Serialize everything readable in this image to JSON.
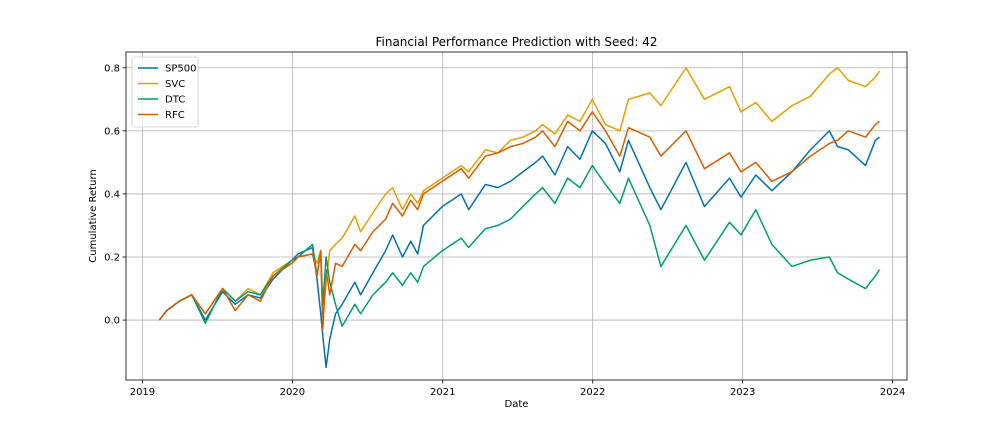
{
  "chart_data": {
    "type": "line",
    "title": "Financial Performance Prediction with Seed: 42",
    "xlabel": "Date",
    "ylabel": "Cumulative Return",
    "x_ticks": [
      "2019",
      "2020",
      "2021",
      "2022",
      "2023",
      "2024"
    ],
    "y_ticks": [
      "0.0",
      "0.2",
      "0.4",
      "0.6",
      "0.8"
    ],
    "xlim": [
      "2018-11-22",
      "2024-02-05"
    ],
    "ylim": [
      -0.19,
      0.85
    ],
    "grid": true,
    "legend_position": "upper left",
    "series": [
      {
        "name": "SP500",
        "color": "#0072B2",
        "points": [
          [
            "2019-02-11",
            0.0
          ],
          [
            "2019-03-01",
            0.03
          ],
          [
            "2019-04-01",
            0.06
          ],
          [
            "2019-05-01",
            0.08
          ],
          [
            "2019-06-03",
            0.0
          ],
          [
            "2019-07-15",
            0.09
          ],
          [
            "2019-08-15",
            0.05
          ],
          [
            "2019-09-15",
            0.08
          ],
          [
            "2019-10-15",
            0.07
          ],
          [
            "2019-11-15",
            0.13
          ],
          [
            "2019-12-31",
            0.19
          ],
          [
            "2020-01-15",
            0.21
          ],
          [
            "2020-02-19",
            0.23
          ],
          [
            "2020-03-01",
            0.13
          ],
          [
            "2020-03-10",
            0.02
          ],
          [
            "2020-03-15",
            -0.05
          ],
          [
            "2020-03-23",
            -0.15
          ],
          [
            "2020-04-01",
            -0.06
          ],
          [
            "2020-04-15",
            0.02
          ],
          [
            "2020-05-01",
            0.05
          ],
          [
            "2020-06-01",
            0.12
          ],
          [
            "2020-06-15",
            0.08
          ],
          [
            "2020-07-15",
            0.15
          ],
          [
            "2020-08-15",
            0.22
          ],
          [
            "2020-09-01",
            0.27
          ],
          [
            "2020-09-25",
            0.2
          ],
          [
            "2020-10-15",
            0.25
          ],
          [
            "2020-11-01",
            0.21
          ],
          [
            "2020-11-15",
            0.3
          ],
          [
            "2020-12-31",
            0.36
          ],
          [
            "2021-02-15",
            0.4
          ],
          [
            "2021-03-05",
            0.35
          ],
          [
            "2021-04-15",
            0.43
          ],
          [
            "2021-05-15",
            0.42
          ],
          [
            "2021-06-15",
            0.44
          ],
          [
            "2021-07-15",
            0.47
          ],
          [
            "2021-08-15",
            0.5
          ],
          [
            "2021-09-01",
            0.52
          ],
          [
            "2021-10-01",
            0.46
          ],
          [
            "2021-11-01",
            0.55
          ],
          [
            "2021-12-01",
            0.51
          ],
          [
            "2021-12-31",
            0.6
          ],
          [
            "2022-02-01",
            0.56
          ],
          [
            "2022-03-08",
            0.47
          ],
          [
            "2022-03-29",
            0.57
          ],
          [
            "2022-05-20",
            0.42
          ],
          [
            "2022-06-16",
            0.35
          ],
          [
            "2022-08-16",
            0.5
          ],
          [
            "2022-09-30",
            0.36
          ],
          [
            "2022-11-30",
            0.45
          ],
          [
            "2022-12-28",
            0.39
          ],
          [
            "2023-02-02",
            0.46
          ],
          [
            "2023-03-13",
            0.41
          ],
          [
            "2023-05-01",
            0.47
          ],
          [
            "2023-06-15",
            0.54
          ],
          [
            "2023-07-31",
            0.6
          ],
          [
            "2023-08-20",
            0.55
          ],
          [
            "2023-09-15",
            0.54
          ],
          [
            "2023-10-27",
            0.49
          ],
          [
            "2023-11-20",
            0.57
          ],
          [
            "2023-11-30",
            0.58
          ]
        ]
      },
      {
        "name": "SVC",
        "color": "#E69F00",
        "points": [
          [
            "2019-02-11",
            0.0
          ],
          [
            "2019-03-01",
            0.03
          ],
          [
            "2019-04-01",
            0.06
          ],
          [
            "2019-05-01",
            0.08
          ],
          [
            "2019-06-03",
            0.02
          ],
          [
            "2019-07-15",
            0.1
          ],
          [
            "2019-08-15",
            0.06
          ],
          [
            "2019-09-15",
            0.1
          ],
          [
            "2019-10-15",
            0.08
          ],
          [
            "2019-11-15",
            0.15
          ],
          [
            "2019-12-31",
            0.19
          ],
          [
            "2020-01-15",
            0.2
          ],
          [
            "2020-02-19",
            0.21
          ],
          [
            "2020-03-01",
            0.18
          ],
          [
            "2020-03-10",
            0.22
          ],
          [
            "2020-03-15",
            0.0
          ],
          [
            "2020-03-23",
            0.12
          ],
          [
            "2020-04-01",
            0.22
          ],
          [
            "2020-04-15",
            0.24
          ],
          [
            "2020-05-01",
            0.26
          ],
          [
            "2020-06-01",
            0.33
          ],
          [
            "2020-06-15",
            0.28
          ],
          [
            "2020-07-15",
            0.34
          ],
          [
            "2020-08-15",
            0.4
          ],
          [
            "2020-09-01",
            0.42
          ],
          [
            "2020-09-25",
            0.35
          ],
          [
            "2020-10-15",
            0.4
          ],
          [
            "2020-11-01",
            0.37
          ],
          [
            "2020-11-15",
            0.41
          ],
          [
            "2020-12-31",
            0.45
          ],
          [
            "2021-02-15",
            0.49
          ],
          [
            "2021-03-05",
            0.47
          ],
          [
            "2021-04-15",
            0.54
          ],
          [
            "2021-05-15",
            0.53
          ],
          [
            "2021-06-15",
            0.57
          ],
          [
            "2021-07-15",
            0.58
          ],
          [
            "2021-08-15",
            0.6
          ],
          [
            "2021-09-01",
            0.62
          ],
          [
            "2021-10-01",
            0.59
          ],
          [
            "2021-11-01",
            0.65
          ],
          [
            "2021-12-01",
            0.63
          ],
          [
            "2021-12-31",
            0.7
          ],
          [
            "2022-02-01",
            0.62
          ],
          [
            "2022-03-08",
            0.6
          ],
          [
            "2022-03-29",
            0.7
          ],
          [
            "2022-05-20",
            0.72
          ],
          [
            "2022-06-16",
            0.68
          ],
          [
            "2022-08-16",
            0.8
          ],
          [
            "2022-09-30",
            0.7
          ],
          [
            "2022-11-30",
            0.74
          ],
          [
            "2022-12-28",
            0.66
          ],
          [
            "2023-02-02",
            0.69
          ],
          [
            "2023-03-13",
            0.63
          ],
          [
            "2023-05-01",
            0.68
          ],
          [
            "2023-06-15",
            0.71
          ],
          [
            "2023-07-31",
            0.78
          ],
          [
            "2023-08-20",
            0.8
          ],
          [
            "2023-09-15",
            0.76
          ],
          [
            "2023-10-27",
            0.74
          ],
          [
            "2023-11-20",
            0.77
          ],
          [
            "2023-11-30",
            0.79
          ]
        ]
      },
      {
        "name": "DTC",
        "color": "#009E73",
        "points": [
          [
            "2019-02-11",
            0.0
          ],
          [
            "2019-03-01",
            0.03
          ],
          [
            "2019-04-01",
            0.06
          ],
          [
            "2019-05-01",
            0.08
          ],
          [
            "2019-06-03",
            -0.01
          ],
          [
            "2019-07-15",
            0.1
          ],
          [
            "2019-08-15",
            0.06
          ],
          [
            "2019-09-15",
            0.09
          ],
          [
            "2019-10-15",
            0.08
          ],
          [
            "2019-11-15",
            0.14
          ],
          [
            "2019-12-31",
            0.19
          ],
          [
            "2020-01-15",
            0.2
          ],
          [
            "2020-02-19",
            0.24
          ],
          [
            "2020-03-01",
            0.14
          ],
          [
            "2020-03-10",
            0.22
          ],
          [
            "2020-03-15",
            0.05
          ],
          [
            "2020-03-23",
            0.2
          ],
          [
            "2020-04-01",
            0.12
          ],
          [
            "2020-04-15",
            0.05
          ],
          [
            "2020-05-01",
            -0.02
          ],
          [
            "2020-06-01",
            0.05
          ],
          [
            "2020-06-15",
            0.02
          ],
          [
            "2020-07-15",
            0.08
          ],
          [
            "2020-08-15",
            0.12
          ],
          [
            "2020-09-01",
            0.15
          ],
          [
            "2020-09-25",
            0.11
          ],
          [
            "2020-10-15",
            0.15
          ],
          [
            "2020-11-01",
            0.12
          ],
          [
            "2020-11-15",
            0.17
          ],
          [
            "2020-12-31",
            0.22
          ],
          [
            "2021-02-15",
            0.26
          ],
          [
            "2021-03-05",
            0.23
          ],
          [
            "2021-04-15",
            0.29
          ],
          [
            "2021-05-15",
            0.3
          ],
          [
            "2021-06-15",
            0.32
          ],
          [
            "2021-07-15",
            0.36
          ],
          [
            "2021-08-15",
            0.4
          ],
          [
            "2021-09-01",
            0.42
          ],
          [
            "2021-10-01",
            0.37
          ],
          [
            "2021-11-01",
            0.45
          ],
          [
            "2021-12-01",
            0.42
          ],
          [
            "2021-12-31",
            0.49
          ],
          [
            "2022-02-01",
            0.43
          ],
          [
            "2022-03-08",
            0.37
          ],
          [
            "2022-03-29",
            0.45
          ],
          [
            "2022-05-20",
            0.3
          ],
          [
            "2022-06-16",
            0.17
          ],
          [
            "2022-08-16",
            0.3
          ],
          [
            "2022-09-30",
            0.19
          ],
          [
            "2022-11-30",
            0.31
          ],
          [
            "2022-12-28",
            0.27
          ],
          [
            "2023-02-02",
            0.35
          ],
          [
            "2023-03-13",
            0.24
          ],
          [
            "2023-05-01",
            0.17
          ],
          [
            "2023-06-15",
            0.19
          ],
          [
            "2023-07-31",
            0.2
          ],
          [
            "2023-08-20",
            0.15
          ],
          [
            "2023-09-15",
            0.13
          ],
          [
            "2023-10-27",
            0.1
          ],
          [
            "2023-11-20",
            0.14
          ],
          [
            "2023-11-30",
            0.16
          ]
        ]
      },
      {
        "name": "RFC",
        "color": "#D55E00",
        "points": [
          [
            "2019-02-11",
            0.0
          ],
          [
            "2019-03-01",
            0.03
          ],
          [
            "2019-04-01",
            0.06
          ],
          [
            "2019-05-01",
            0.08
          ],
          [
            "2019-06-03",
            0.02
          ],
          [
            "2019-07-15",
            0.1
          ],
          [
            "2019-08-15",
            0.03
          ],
          [
            "2019-09-15",
            0.08
          ],
          [
            "2019-10-15",
            0.06
          ],
          [
            "2019-11-15",
            0.14
          ],
          [
            "2019-12-31",
            0.18
          ],
          [
            "2020-01-15",
            0.2
          ],
          [
            "2020-02-19",
            0.21
          ],
          [
            "2020-03-01",
            0.14
          ],
          [
            "2020-03-10",
            0.22
          ],
          [
            "2020-03-15",
            -0.03
          ],
          [
            "2020-03-23",
            0.16
          ],
          [
            "2020-04-01",
            0.08
          ],
          [
            "2020-04-15",
            0.18
          ],
          [
            "2020-05-01",
            0.17
          ],
          [
            "2020-06-01",
            0.24
          ],
          [
            "2020-06-15",
            0.22
          ],
          [
            "2020-07-15",
            0.28
          ],
          [
            "2020-08-15",
            0.32
          ],
          [
            "2020-09-01",
            0.37
          ],
          [
            "2020-09-25",
            0.33
          ],
          [
            "2020-10-15",
            0.38
          ],
          [
            "2020-11-01",
            0.35
          ],
          [
            "2020-11-15",
            0.4
          ],
          [
            "2020-12-31",
            0.44
          ],
          [
            "2021-02-15",
            0.48
          ],
          [
            "2021-03-05",
            0.45
          ],
          [
            "2021-04-15",
            0.52
          ],
          [
            "2021-05-15",
            0.53
          ],
          [
            "2021-06-15",
            0.55
          ],
          [
            "2021-07-15",
            0.56
          ],
          [
            "2021-08-15",
            0.58
          ],
          [
            "2021-09-01",
            0.6
          ],
          [
            "2021-10-01",
            0.55
          ],
          [
            "2021-11-01",
            0.63
          ],
          [
            "2021-12-01",
            0.6
          ],
          [
            "2021-12-31",
            0.66
          ],
          [
            "2022-02-01",
            0.6
          ],
          [
            "2022-03-08",
            0.52
          ],
          [
            "2022-03-29",
            0.61
          ],
          [
            "2022-05-20",
            0.58
          ],
          [
            "2022-06-16",
            0.52
          ],
          [
            "2022-08-16",
            0.6
          ],
          [
            "2022-09-30",
            0.48
          ],
          [
            "2022-11-30",
            0.53
          ],
          [
            "2022-12-28",
            0.47
          ],
          [
            "2023-02-02",
            0.5
          ],
          [
            "2023-03-13",
            0.44
          ],
          [
            "2023-05-01",
            0.47
          ],
          [
            "2023-06-15",
            0.52
          ],
          [
            "2023-07-31",
            0.56
          ],
          [
            "2023-08-20",
            0.57
          ],
          [
            "2023-09-15",
            0.6
          ],
          [
            "2023-10-27",
            0.58
          ],
          [
            "2023-11-20",
            0.62
          ],
          [
            "2023-11-30",
            0.63
          ]
        ]
      }
    ]
  }
}
